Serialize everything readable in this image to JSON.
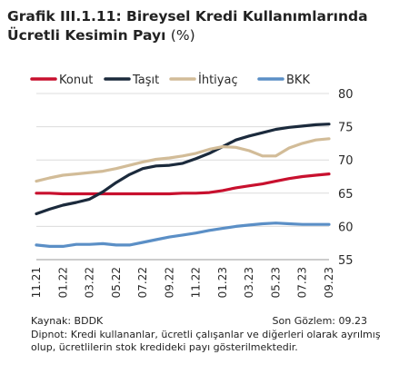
{
  "title": {
    "line1": "Grafik III.1.11: Bireysel Kredi Kullanımlarında",
    "line2": "Ücretli Kesimin Payı",
    "unit": "(%)"
  },
  "chart_data": {
    "type": "line",
    "yaxis_position": "right",
    "ylim": [
      55,
      80
    ],
    "yticks": [
      55,
      60,
      65,
      70,
      75,
      80
    ],
    "grid": true,
    "legend_position": "top",
    "x_tick_labels": [
      "11.21",
      "01.22",
      "03.22",
      "05.22",
      "07.22",
      "09.22",
      "11.22",
      "01.23",
      "03.23",
      "05.23",
      "07.23",
      "09.23"
    ],
    "x": [
      "11.21",
      "12.21",
      "01.22",
      "02.22",
      "03.22",
      "04.22",
      "05.22",
      "06.22",
      "07.22",
      "08.22",
      "09.22",
      "10.22",
      "11.22",
      "12.22",
      "01.23",
      "02.23",
      "03.23",
      "04.23",
      "05.23",
      "06.23",
      "07.23",
      "08.23",
      "09.23"
    ],
    "series": [
      {
        "name": "Konut",
        "color": "#c8102e",
        "values": [
          65.0,
          65.0,
          64.9,
          64.9,
          64.9,
          64.9,
          64.9,
          64.9,
          64.9,
          64.9,
          64.9,
          65.0,
          65.0,
          65.1,
          65.4,
          65.8,
          66.1,
          66.4,
          66.8,
          67.2,
          67.5,
          67.7,
          67.9
        ]
      },
      {
        "name": "Taşıt",
        "color": "#1b2a3c",
        "values": [
          61.9,
          62.6,
          63.2,
          63.6,
          64.1,
          65.2,
          66.6,
          67.8,
          68.7,
          69.1,
          69.2,
          69.5,
          70.2,
          71.0,
          72.0,
          73.0,
          73.6,
          74.1,
          74.6,
          74.9,
          75.1,
          75.3,
          75.4
        ]
      },
      {
        "name": "İhtiyaç",
        "color": "#d2bc98",
        "values": [
          66.8,
          67.3,
          67.7,
          67.9,
          68.1,
          68.3,
          68.7,
          69.2,
          69.7,
          70.1,
          70.3,
          70.6,
          71.0,
          71.6,
          72.0,
          71.9,
          71.4,
          70.6,
          70.6,
          71.8,
          72.5,
          73.0,
          73.2
        ]
      },
      {
        "name": "BKK",
        "color": "#5b8fc6",
        "values": [
          57.2,
          57.0,
          57.0,
          57.3,
          57.3,
          57.4,
          57.2,
          57.2,
          57.6,
          58.0,
          58.4,
          58.7,
          59.0,
          59.4,
          59.7,
          60.0,
          60.2,
          60.4,
          60.5,
          60.4,
          60.3,
          60.3,
          60.3
        ]
      }
    ]
  },
  "footer": {
    "source": "Kaynak: BDDK",
    "last_obs": "Son Gözlem: 09.23",
    "note": "Dipnot: Kredi kullananlar, ücretli çalışanlar ve diğerleri olarak ayrılmış olup, ücretlilerin stok kredideki payı gösterilmektedir."
  }
}
